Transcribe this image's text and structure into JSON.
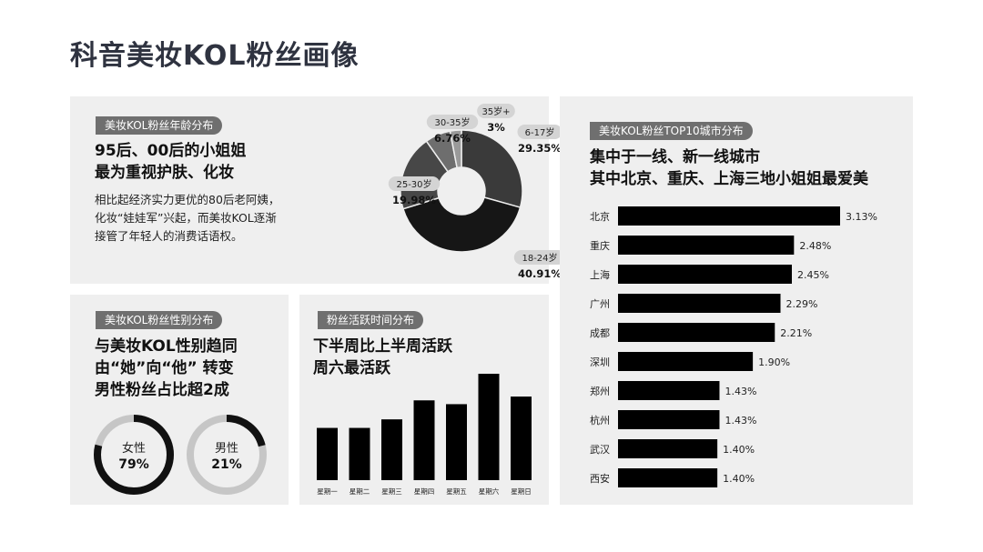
{
  "page": {
    "title": "科音美妆KOL粉丝画像"
  },
  "age": {
    "tag": "美妆KOL粉丝年龄分布",
    "headline": [
      "95后、00后的小姐姐",
      "最为重视护肤、化妆"
    ],
    "body": [
      "相比起经济实力更优的80后老阿姨，",
      "化妆“娃娃军”兴起，而美妆KOL逐渐",
      "接管了年轻人的消费话语权。"
    ]
  },
  "city": {
    "tag": "美妆KOL粉丝TOP10城市分布",
    "headline": [
      "集中于一线、新一线城市",
      "其中北京、重庆、上海三地小姐姐最爱美"
    ]
  },
  "gender": {
    "tag": "美妆KOL粉丝性别分布",
    "headline": [
      "与美妆KOL性别趋同",
      "由“她”向“他” 转变",
      "男性粉丝占比超2成"
    ]
  },
  "active": {
    "tag": "粉丝活跃时间分布",
    "headline": [
      "下半周比上半周活跃",
      "周六最活跃"
    ]
  },
  "chart_data": [
    {
      "type": "pie",
      "categories": [
        "6-17岁",
        "18-24岁",
        "25-30岁",
        "30-35岁",
        "35岁+"
      ],
      "values": [
        29.35,
        40.91,
        19.98,
        6.76,
        3
      ],
      "labels": [
        "29.35%",
        "40.91%",
        "19.98%",
        "6.76%",
        "3%"
      ],
      "colors": [
        "#3a3a3a",
        "#161616",
        "#474747",
        "#6e6e6e",
        "#9a9a9a"
      ]
    },
    {
      "type": "bar",
      "orientation": "horizontal",
      "categories": [
        "北京",
        "重庆",
        "上海",
        "广州",
        "成都",
        "深圳",
        "郑州",
        "杭州",
        "武汉",
        "西安"
      ],
      "values": [
        3.13,
        2.48,
        2.45,
        2.29,
        2.21,
        1.9,
        1.43,
        1.43,
        1.4,
        1.4
      ],
      "labels": [
        "3.13%",
        "2.48%",
        "2.45%",
        "2.29%",
        "2.21%",
        "1.90%",
        "1.43%",
        "1.43%",
        "1.40%",
        "1.40%"
      ]
    },
    {
      "type": "pie",
      "categories": [
        "女性",
        "男性"
      ],
      "values": [
        79,
        21
      ],
      "labels": [
        "79%",
        "21%"
      ]
    },
    {
      "type": "bar",
      "categories": [
        "星期一",
        "星期二",
        "星期三",
        "星期四",
        "星期五",
        "星期六",
        "星期日"
      ],
      "values": [
        55,
        55,
        64,
        84,
        80,
        112,
        88
      ]
    }
  ]
}
